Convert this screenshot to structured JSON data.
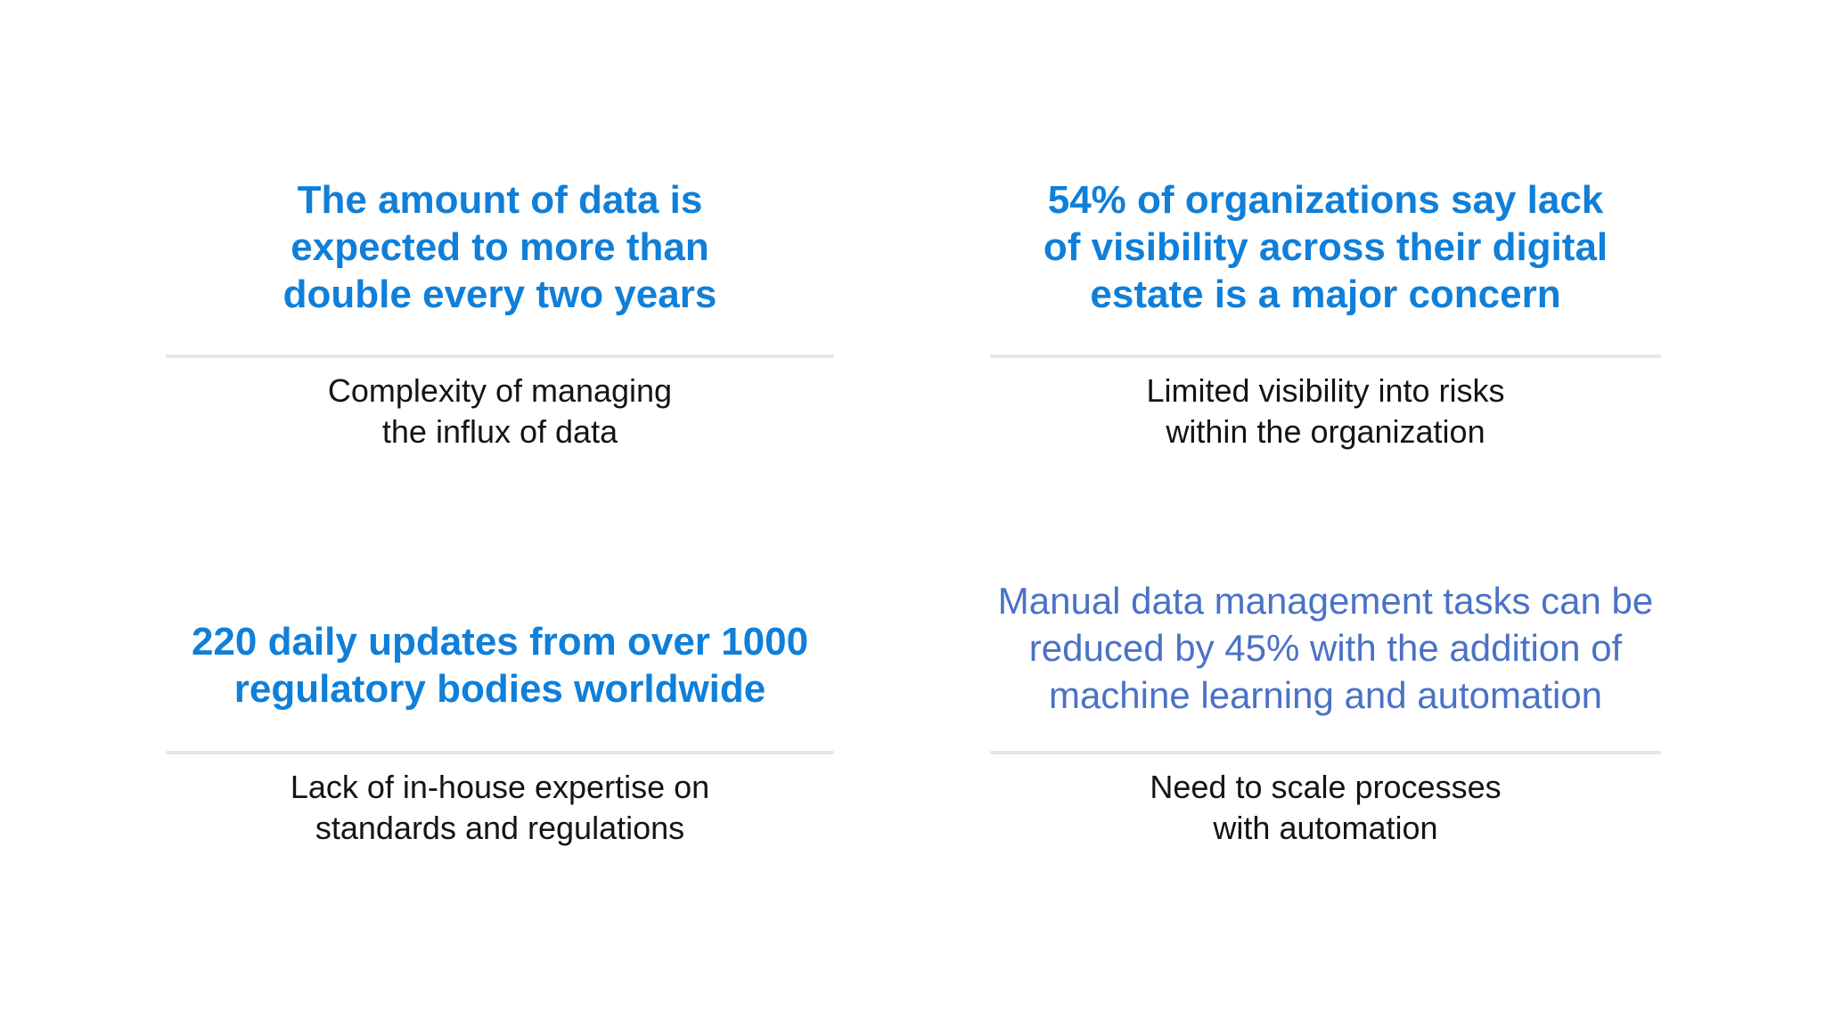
{
  "slide": {
    "background": "#ffffff",
    "colors": {
      "headline_blue": "#0f7fd9",
      "headline_light_blue": "#4a72c6",
      "subtext_color": "#141414",
      "divider_color": "#e7e5e6"
    },
    "cards": [
      {
        "name": "data-growth",
        "headline": "The amount of data is\nexpected to more than\ndouble every two years",
        "headline_style": "bold-blue",
        "subtext": "Complexity of managing\nthe influx of data"
      },
      {
        "name": "visibility-concern",
        "headline": "54% of organizations say lack\nof visibility across their digital\nestate is a major concern",
        "headline_style": "bold-blue",
        "subtext": "Limited visibility into risks\nwithin the organization"
      },
      {
        "name": "regulatory-updates",
        "headline": "220 daily updates from over 1000\nregulatory bodies worldwide",
        "headline_style": "bold-blue",
        "subtext": "Lack of in-house expertise on\nstandards and regulations"
      },
      {
        "name": "automation-reduction",
        "headline": "Manual data management tasks can be\nreduced by 45% with the addition of\nmachine learning and automation",
        "headline_style": "light-blue",
        "subtext": "Need to scale processes\nwith automation"
      }
    ]
  }
}
